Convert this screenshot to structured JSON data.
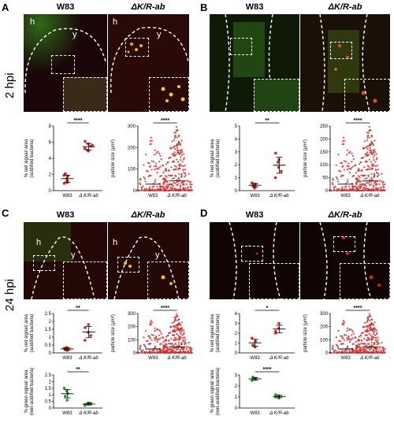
{
  "panels": {
    "A": {
      "letter": "A",
      "col_left": "W83",
      "col_right": "ΔK/R-ab"
    },
    "B": {
      "letter": "B",
      "col_left": "W83",
      "col_right": "ΔK/R-ab"
    },
    "C": {
      "letter": "C",
      "col_left": "W83",
      "col_right": "ΔK/R-ab"
    },
    "D": {
      "letter": "D",
      "col_left": "W83",
      "col_right": "ΔK/R-ab"
    }
  },
  "rows": {
    "top": "2 hpi",
    "bottom": "24 hpi"
  },
  "image_labels": {
    "h": "h",
    "y": "y"
  },
  "colors": {
    "red": "#d62828",
    "green": "#2a9d3a",
    "axis": "#000"
  },
  "chart_data": [
    {
      "id": "A-red",
      "type": "scatter",
      "ylabel": "% red signal/ area\n(acidified bacteria)",
      "categories": [
        "W83",
        "Δ K/R-ab"
      ],
      "ylim": [
        0,
        8
      ],
      "yticks": [
        0,
        2,
        4,
        6,
        8
      ],
      "significance": "****",
      "series": [
        {
          "name": "W83",
          "values": [
            1.2,
            1.8,
            0.9,
            2.1,
            1.5,
            1.0,
            1.9
          ]
        },
        {
          "name": "Δ K/R-ab",
          "values": [
            5.2,
            5.8,
            4.9,
            6.1,
            5.5,
            5.0,
            5.6
          ]
        }
      ]
    },
    {
      "id": "A-size",
      "type": "scatter",
      "ylabel": "particle size (µm²)",
      "categories": [
        "W83",
        "Δ K/R-ab"
      ],
      "ylim": [
        0,
        300
      ],
      "yticks": [
        0,
        100,
        200,
        300
      ],
      "significance": "****"
    },
    {
      "id": "B-red",
      "type": "scatter",
      "ylabel": "% red signal/ area\n(acidified bacteria)",
      "categories": [
        "W83",
        "Δ K/R-ab"
      ],
      "ylim": [
        0,
        5
      ],
      "yticks": [
        0,
        1,
        2,
        3,
        4,
        5
      ],
      "significance": "**",
      "series": [
        {
          "name": "W83",
          "values": [
            0.3,
            0.5,
            0.6,
            0.4,
            0.2,
            0.5
          ]
        },
        {
          "name": "Δ K/R-ab",
          "values": [
            1.0,
            1.8,
            2.4,
            2.9,
            1.5,
            2.2
          ]
        }
      ]
    },
    {
      "id": "B-size",
      "type": "scatter",
      "ylabel": "particle size (µm²)",
      "categories": [
        "W83",
        "Δ K/R-ab"
      ],
      "ylim": [
        0,
        250
      ],
      "yticks": [
        0,
        50,
        100,
        150,
        200,
        250
      ],
      "significance": "****"
    },
    {
      "id": "C-red",
      "type": "scatter",
      "ylabel": "% red signal/ area\n(acidified bacteria)",
      "categories": [
        "W83",
        "Δ K/R-ab"
      ],
      "ylim": [
        0,
        2.5
      ],
      "yticks": [
        0.0,
        0.5,
        1.0,
        1.5,
        2.0,
        2.5
      ],
      "significance": "**",
      "series": [
        {
          "name": "W83",
          "values": [
            0.15,
            0.25,
            0.3,
            0.2,
            0.35
          ]
        },
        {
          "name": "Δ K/R-ab",
          "values": [
            0.8,
            1.3,
            1.8,
            1.6,
            1.1
          ]
        }
      ]
    },
    {
      "id": "C-size",
      "type": "scatter",
      "ylabel": "particle size (µm²)",
      "categories": [
        "W83",
        "Δ K/R-ab"
      ],
      "ylim": [
        0,
        300
      ],
      "yticks": [
        0,
        100,
        200,
        300
      ],
      "significance": "****"
    },
    {
      "id": "C-green",
      "type": "scatter",
      "ylabel": "% green signal/ area\n(non-acidified bacteria)",
      "categories": [
        "W83",
        "Δ K/R-ab"
      ],
      "ylim": [
        0,
        2.5
      ],
      "yticks": [
        0.0,
        0.5,
        1.0,
        1.5,
        2.0,
        2.5
      ],
      "significance": "**",
      "series": [
        {
          "name": "W83",
          "values": [
            0.6,
            1.1,
            1.5,
            0.9,
            1.3
          ]
        },
        {
          "name": "Δ K/R-ab",
          "values": [
            0.2,
            0.3,
            0.4,
            0.25,
            0.35
          ]
        }
      ]
    },
    {
      "id": "D-red",
      "type": "scatter",
      "ylabel": "% red signal/ area\n(acidified bacteria)",
      "categories": [
        "W83",
        "Δ K/R-ab"
      ],
      "ylim": [
        0,
        4
      ],
      "yticks": [
        0,
        1,
        2,
        3,
        4
      ],
      "significance": "*",
      "series": [
        {
          "name": "W83",
          "values": [
            0.6,
            1.2,
            1.5,
            0.8
          ]
        },
        {
          "name": "Δ K/R-ab",
          "values": [
            2.0,
            2.5,
            3.0,
            2.2
          ]
        }
      ]
    },
    {
      "id": "D-size",
      "type": "scatter",
      "ylabel": "particle size (µm²)",
      "categories": [
        "W83",
        "Δ K/R-ab"
      ],
      "ylim": [
        0,
        300
      ],
      "yticks": [
        0,
        100,
        200,
        300
      ],
      "significance": "****"
    },
    {
      "id": "D-green",
      "type": "scatter",
      "ylabel": "% green signal/ area\n(non-acidified bacteria)",
      "categories": [
        "W83",
        "Δ K/R-ab"
      ],
      "ylim": [
        0,
        3
      ],
      "yticks": [
        0,
        1,
        2,
        3
      ],
      "significance": "****",
      "series": [
        {
          "name": "W83",
          "values": [
            2.6,
            2.7,
            2.5,
            2.8
          ]
        },
        {
          "name": "Δ K/R-ab",
          "values": [
            1.0,
            1.1,
            0.9,
            1.2
          ]
        }
      ]
    }
  ]
}
